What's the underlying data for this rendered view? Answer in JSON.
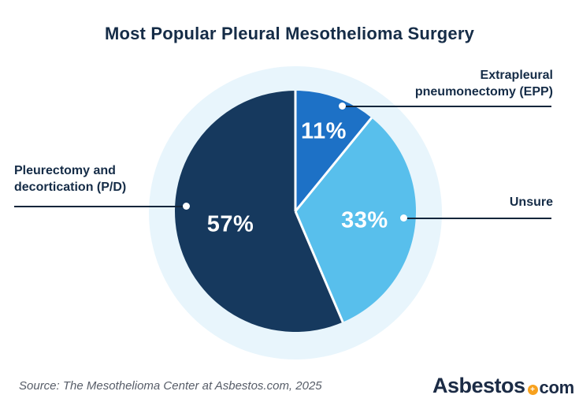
{
  "title": "Most Popular Pleural Mesothelioma Surgery",
  "source_note": "Source: The Mesothelioma Center at Asbestos.com, 2025",
  "logo": {
    "name": "Asbestos",
    "tld": "com",
    "dot_icon": "plus-ring-icon",
    "dot_color": "#F7A11E",
    "text_color": "#1B2B45"
  },
  "colors": {
    "background": "#FFFFFF",
    "halo": "#E8F5FC",
    "title_text": "#152C47",
    "callout_text": "#152C47",
    "leader_line": "#13263B",
    "percent_text": "#FFFFFF",
    "slice_divider": "#FFFFFF",
    "source_text": "#575D68"
  },
  "chart_data": {
    "type": "pie",
    "title": "Most Popular Pleural Mesothelioma Surgery",
    "start_angle_deg": 0,
    "direction": "clockwise",
    "legend_position": "callouts",
    "value_labels_inside": true,
    "slices": [
      {
        "name": "Extrapleural pneumonectomy (EPP)",
        "value": 11,
        "label": "11%",
        "color": "#1D71C6",
        "label_radius_factor": 0.7
      },
      {
        "name": "Unsure",
        "value": 33,
        "label": "33%",
        "color": "#58BFEC",
        "label_radius_factor": 0.58
      },
      {
        "name": "Pleurectomy and decortication (P/D)",
        "value": 57,
        "label": "57%",
        "color": "#16395E",
        "label_radius_factor": 0.55
      }
    ]
  }
}
